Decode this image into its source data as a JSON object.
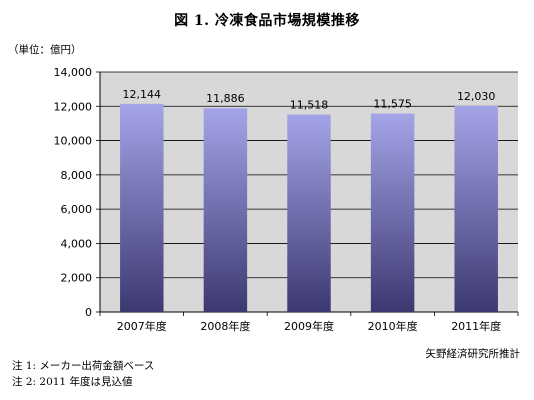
{
  "header": {
    "title": "図 1. 冷凍食品市場規模推移",
    "unit": "（単位：億円）"
  },
  "footer": {
    "source": "矢野経済研究所推計",
    "note1": "注 1: メーカー出荷金額ベース",
    "note2": "注 2: 2011 年度は見込値"
  },
  "chart_data": {
    "type": "bar",
    "title": "図 1. 冷凍食品市場規模推移",
    "xlabel": "",
    "ylabel": "",
    "categories": [
      "2007年度",
      "2008年度",
      "2009年度",
      "2010年度",
      "2011年度"
    ],
    "values": [
      12144,
      11886,
      11518,
      11575,
      12030
    ],
    "value_labels": [
      "12,144",
      "11,886",
      "11,518",
      "11,575",
      "12,030"
    ],
    "ylim": [
      0,
      14000
    ],
    "yticks": [
      0,
      2000,
      4000,
      6000,
      8000,
      10000,
      12000,
      14000
    ],
    "ytick_labels": [
      "0",
      "2,000",
      "4,000",
      "6,000",
      "8,000",
      "10,000",
      "12,000",
      "14,000"
    ],
    "grid": true,
    "legend": "none",
    "colors": {
      "bar_top": "#a4a4e8",
      "bar_bottom": "#3c3870",
      "plot_bg": "#d8d8d8",
      "grid": "#000000"
    }
  }
}
